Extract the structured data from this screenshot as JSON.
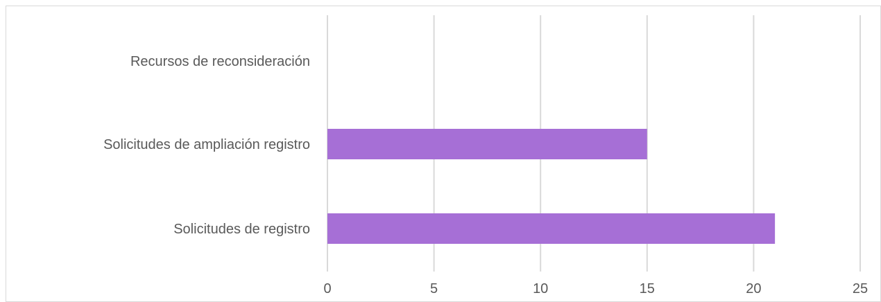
{
  "chart_data": {
    "type": "bar",
    "orientation": "horizontal",
    "title": "",
    "xlabel": "",
    "ylabel": "",
    "categories": [
      "Recursos de reconsideración",
      "Solicitudes de ampliación registro",
      "Solicitudes de registro"
    ],
    "values": [
      0,
      15,
      21
    ],
    "xlim": [
      0,
      25
    ],
    "xticks": [
      0,
      5,
      10,
      15,
      20,
      25
    ],
    "tick_labels": [
      "0",
      "5",
      "10",
      "15",
      "20",
      "25"
    ],
    "grid": "vertical",
    "legend": "none",
    "bar_color": "#a66fd6",
    "grid_color": "#d9d9d9",
    "text_color": "#595959"
  }
}
